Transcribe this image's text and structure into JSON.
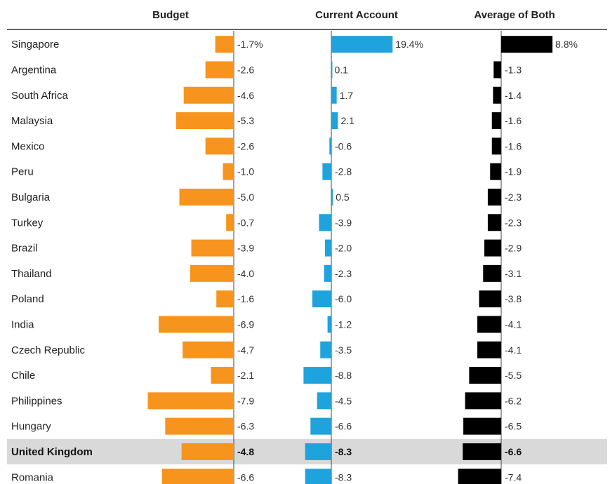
{
  "chart_data": {
    "type": "bar",
    "title": "",
    "columns": [
      "Budget",
      "Current Account",
      "Average of Both"
    ],
    "categories": [
      "Singapore",
      "Argentina",
      "South Africa",
      "Malaysia",
      "Mexico",
      "Peru",
      "Bulgaria",
      "Turkey",
      "Brazil",
      "Thailand",
      "Poland",
      "India",
      "Czech Republic",
      "Chile",
      "Philippines",
      "Hungary",
      "United Kingdom",
      "Romania"
    ],
    "highlight": "United Kingdom",
    "highlight_color": "#d9d9d9",
    "series": [
      {
        "name": "Budget",
        "color": "#f7941d",
        "values": [
          -1.7,
          -2.6,
          -4.6,
          -5.3,
          -2.6,
          -1.0,
          -5.0,
          -0.7,
          -3.9,
          -4.0,
          -1.6,
          -6.9,
          -4.7,
          -2.1,
          -7.9,
          -6.3,
          -4.8,
          -6.6
        ],
        "labels": [
          "-1.7%",
          "-2.6",
          "-4.6",
          "-5.3",
          "-2.6",
          "-1.0",
          "-5.0",
          "-0.7",
          "-3.9",
          "-4.0",
          "-1.6",
          "-6.9",
          "-4.7",
          "-2.1",
          "-7.9",
          "-6.3",
          "-4.8",
          "-6.6"
        ]
      },
      {
        "name": "Current Account",
        "color": "#1fa3dc",
        "values": [
          19.4,
          0.1,
          1.7,
          2.1,
          -0.6,
          -2.8,
          0.5,
          -3.9,
          -2.0,
          -2.3,
          -6.0,
          -1.2,
          -3.5,
          -8.8,
          -4.5,
          -6.6,
          -8.3,
          -8.3
        ],
        "labels": [
          "19.4%",
          "0.1",
          "1.7",
          "2.1",
          "-0.6",
          "-2.8",
          "0.5",
          "-3.9",
          "-2.0",
          "-2.3",
          "-6.0",
          "-1.2",
          "-3.5",
          "-8.8",
          "-4.5",
          "-6.6",
          "-8.3",
          "-8.3"
        ]
      },
      {
        "name": "Average of Both",
        "color": "#000000",
        "values": [
          8.8,
          -1.3,
          -1.4,
          -1.6,
          -1.6,
          -1.9,
          -2.3,
          -2.3,
          -2.9,
          -3.1,
          -3.8,
          -4.1,
          -4.1,
          -5.5,
          -6.2,
          -6.5,
          -6.6,
          -7.4
        ],
        "labels": [
          "8.8%",
          "-1.3",
          "-1.4",
          "-1.6",
          "-1.6",
          "-1.9",
          "-2.3",
          "-2.3",
          "-2.9",
          "-3.1",
          "-3.8",
          "-4.1",
          "-4.1",
          "-5.5",
          "-6.2",
          "-6.5",
          "-6.6",
          "-7.4"
        ]
      }
    ]
  }
}
